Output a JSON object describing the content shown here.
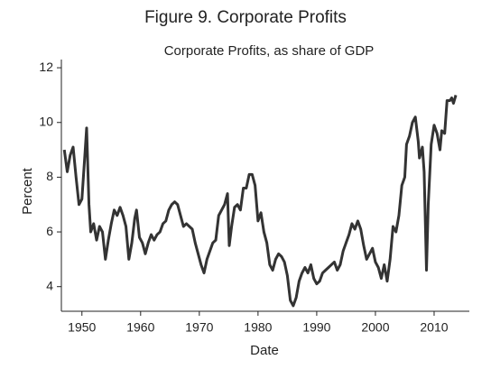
{
  "chart_data": {
    "type": "line",
    "title": "Figure 9.  Corporate Profits",
    "subtitle": "Corporate Profits, as share of GDP",
    "x_label": "Date",
    "y_label": "Percent",
    "xlim": [
      1946.5,
      2016
    ],
    "ylim": [
      3.1,
      12.3
    ],
    "xticks": [
      1950,
      1960,
      1970,
      1980,
      1990,
      2000,
      2010
    ],
    "yticks": [
      4,
      6,
      8,
      10,
      12
    ],
    "grid": false,
    "x": [
      1947,
      1947.5,
      1948,
      1948.5,
      1949,
      1949.5,
      1950,
      1950.5,
      1950.8,
      1951.2,
      1951.5,
      1952,
      1952.5,
      1953,
      1953.5,
      1954,
      1954.5,
      1955,
      1955.5,
      1956,
      1956.5,
      1957,
      1957.5,
      1958,
      1958.5,
      1959,
      1959.3,
      1959.8,
      1960.3,
      1960.8,
      1961.3,
      1961.8,
      1962.3,
      1962.8,
      1963.3,
      1963.8,
      1964.3,
      1964.8,
      1965.3,
      1965.8,
      1966.3,
      1966.8,
      1967.3,
      1967.8,
      1968.3,
      1968.8,
      1969.3,
      1969.8,
      1970.3,
      1970.8,
      1971.3,
      1971.8,
      1972.3,
      1972.8,
      1973.3,
      1973.8,
      1974.3,
      1974.8,
      1975.1,
      1975.5,
      1976,
      1976.5,
      1977,
      1977.5,
      1978,
      1978.5,
      1979,
      1979.5,
      1980,
      1980.5,
      1981,
      1981.5,
      1982,
      1982.5,
      1983,
      1983.5,
      1984,
      1984.5,
      1985,
      1985.5,
      1986,
      1986.5,
      1987,
      1987.5,
      1988,
      1988.5,
      1989,
      1989.5,
      1990,
      1990.5,
      1991,
      1991.5,
      1992,
      1992.5,
      1993,
      1993.5,
      1994,
      1994.5,
      1995,
      1995.5,
      1996,
      1996.5,
      1997,
      1997.5,
      1998,
      1998.5,
      1999,
      1999.5,
      2000,
      2000.5,
      2001,
      2001.5,
      2002,
      2002.5,
      2003,
      2003.5,
      2004,
      2004.5,
      2005,
      2005.3,
      2005.8,
      2006.3,
      2006.8,
      2007.3,
      2007.5,
      2008,
      2008.3,
      2008.7,
      2009,
      2009.5,
      2010,
      2010.5,
      2011,
      2011.3,
      2011.8,
      2012.2,
      2012.7,
      2013,
      2013.3,
      2013.7
    ],
    "series": [
      {
        "name": "Corporate Profits",
        "color": "#333333",
        "values": [
          9.0,
          8.2,
          8.8,
          9.1,
          8.0,
          7.0,
          7.2,
          8.8,
          9.8,
          7.0,
          6.0,
          6.3,
          5.7,
          6.2,
          6.0,
          5.0,
          5.7,
          6.3,
          6.8,
          6.6,
          6.9,
          6.6,
          6.2,
          5.0,
          5.6,
          6.5,
          6.8,
          5.8,
          5.6,
          5.2,
          5.6,
          5.9,
          5.7,
          5.9,
          6.0,
          6.3,
          6.4,
          6.8,
          7.0,
          7.1,
          7.0,
          6.6,
          6.2,
          6.3,
          6.2,
          6.1,
          5.6,
          5.2,
          4.8,
          4.5,
          5.0,
          5.3,
          5.6,
          5.7,
          6.6,
          6.8,
          7.0,
          7.4,
          5.5,
          6.2,
          6.9,
          7.0,
          6.8,
          7.6,
          7.6,
          8.1,
          8.1,
          7.7,
          6.4,
          6.7,
          6.0,
          5.6,
          4.8,
          4.6,
          5.0,
          5.2,
          5.1,
          4.9,
          4.4,
          3.5,
          3.3,
          3.6,
          4.2,
          4.5,
          4.7,
          4.5,
          4.8,
          4.3,
          4.1,
          4.2,
          4.5,
          4.6,
          4.7,
          4.8,
          4.9,
          4.6,
          4.8,
          5.3,
          5.6,
          5.9,
          6.3,
          6.1,
          6.4,
          6.1,
          5.5,
          5.0,
          5.2,
          5.4,
          4.9,
          4.7,
          4.3,
          4.8,
          4.2,
          5.0,
          6.2,
          6.0,
          6.6,
          7.7,
          8.0,
          9.2,
          9.5,
          10.0,
          10.2,
          9.3,
          8.7,
          9.1,
          8.2,
          4.6,
          7.0,
          9.2,
          9.9,
          9.6,
          9.0,
          9.7,
          9.6,
          10.8,
          10.8,
          10.9,
          10.7,
          11.0
        ]
      }
    ]
  }
}
